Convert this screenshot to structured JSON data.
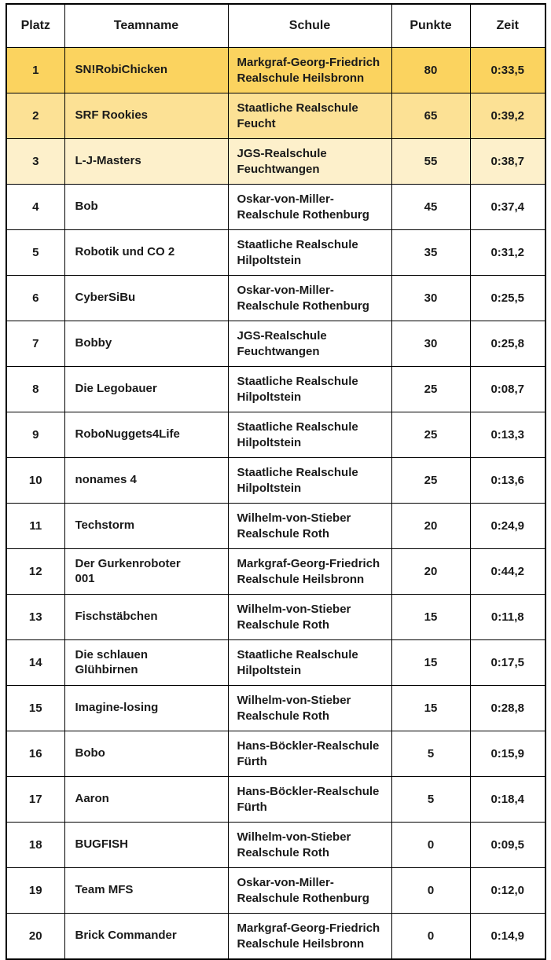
{
  "table": {
    "columns": [
      "Platz",
      "Teamname",
      "Schule",
      "Punkte",
      "Zeit"
    ],
    "band_colors": {
      "gold1": "#FBD35F",
      "gold2": "#FCE195",
      "gold3": "#FDF0CB",
      "white": "#FFFFFF"
    },
    "rows": [
      {
        "platz": "1",
        "team": "SN!RobiChicken",
        "schule": "Markgraf-Georg-Friedrich\nRealschule Heilsbronn",
        "punkte": "80",
        "zeit": "0:33,5",
        "band": "gold1"
      },
      {
        "platz": "2",
        "team": "SRF Rookies",
        "schule": "Staatliche Realschule\nFeucht",
        "punkte": "65",
        "zeit": "0:39,2",
        "band": "gold2"
      },
      {
        "platz": "3",
        "team": "L-J-Masters",
        "schule": "JGS-Realschule\nFeuchtwangen",
        "punkte": "55",
        "zeit": "0:38,7",
        "band": "gold3"
      },
      {
        "platz": "4",
        "team": "Bob",
        "schule": "Oskar-von-Miller-\nRealschule Rothenburg",
        "punkte": "45",
        "zeit": "0:37,4",
        "band": "white"
      },
      {
        "platz": "5",
        "team": "Robotik und CO 2",
        "schule": "Staatliche Realschule\nHilpoltstein",
        "punkte": "35",
        "zeit": "0:31,2",
        "band": "white"
      },
      {
        "platz": "6",
        "team": "CyberSiBu",
        "schule": "Oskar-von-Miller-\nRealschule Rothenburg",
        "punkte": "30",
        "zeit": "0:25,5",
        "band": "white"
      },
      {
        "platz": "7",
        "team": "Bobby",
        "schule": "JGS-Realschule\nFeuchtwangen",
        "punkte": "30",
        "zeit": "0:25,8",
        "band": "white"
      },
      {
        "platz": "8",
        "team": "Die Legobauer",
        "schule": "Staatliche Realschule\nHilpoltstein",
        "punkte": "25",
        "zeit": "0:08,7",
        "band": "white"
      },
      {
        "platz": "9",
        "team": "RoboNuggets4Life",
        "schule": "Staatliche Realschule\nHilpoltstein",
        "punkte": "25",
        "zeit": "0:13,3",
        "band": "white"
      },
      {
        "platz": "10",
        "team": "nonames 4",
        "schule": "Staatliche Realschule\nHilpoltstein",
        "punkte": "25",
        "zeit": "0:13,6",
        "band": "white"
      },
      {
        "platz": "11",
        "team": "Techstorm",
        "schule": "Wilhelm-von-Stieber\nRealschule Roth",
        "punkte": "20",
        "zeit": "0:24,9",
        "band": "white"
      },
      {
        "platz": "12",
        "team": "Der Gurkenroboter\n001",
        "schule": "Markgraf-Georg-Friedrich\nRealschule Heilsbronn",
        "punkte": "20",
        "zeit": "0:44,2",
        "band": "white"
      },
      {
        "platz": "13",
        "team": "Fischstäbchen",
        "schule": "Wilhelm-von-Stieber\nRealschule Roth",
        "punkte": "15",
        "zeit": "0:11,8",
        "band": "white"
      },
      {
        "platz": "14",
        "team": "Die schlauen\nGlühbirnen",
        "schule": "Staatliche Realschule\nHilpoltstein",
        "punkte": "15",
        "zeit": "0:17,5",
        "band": "white"
      },
      {
        "platz": "15",
        "team": "Imagine-losing",
        "schule": "Wilhelm-von-Stieber\nRealschule Roth",
        "punkte": "15",
        "zeit": "0:28,8",
        "band": "white"
      },
      {
        "platz": "16",
        "team": "Bobo",
        "schule": "Hans-Böckler-Realschule\nFürth",
        "punkte": "5",
        "zeit": "0:15,9",
        "band": "white"
      },
      {
        "platz": "17",
        "team": "Aaron",
        "schule": "Hans-Böckler-Realschule\nFürth",
        "punkte": "5",
        "zeit": "0:18,4",
        "band": "white"
      },
      {
        "platz": "18",
        "team": "BUGFISH",
        "schule": "Wilhelm-von-Stieber\nRealschule Roth",
        "punkte": "0",
        "zeit": "0:09,5",
        "band": "white"
      },
      {
        "platz": "19",
        "team": "Team MFS",
        "schule": "Oskar-von-Miller-\nRealschule Rothenburg",
        "punkte": "0",
        "zeit": "0:12,0",
        "band": "white"
      },
      {
        "platz": "20",
        "team": "Brick Commander",
        "schule": "Markgraf-Georg-Friedrich\nRealschule Heilsbronn",
        "punkte": "0",
        "zeit": "0:14,9",
        "band": "white"
      }
    ]
  }
}
